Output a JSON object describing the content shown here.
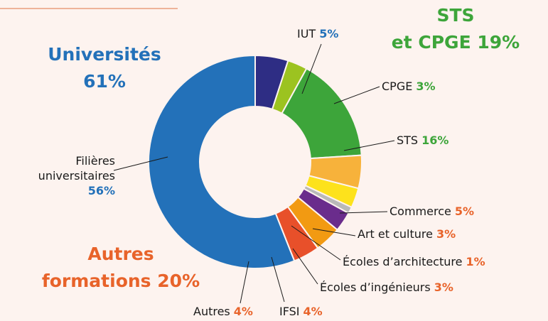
{
  "chart_data": {
    "type": "donut",
    "categories": [
      "IUT",
      "CPGE",
      "STS",
      "Commerce",
      "Art et culture",
      "Écoles d’architecture",
      "Écoles d’ingénieurs",
      "IFSI",
      "Autres",
      "Filières universitaires"
    ],
    "values": [
      5,
      3,
      16,
      5,
      3,
      1,
      3,
      4,
      4,
      56
    ],
    "value_labels": [
      "5%",
      "3%",
      "16%",
      "5%",
      "3%",
      "1%",
      "3%",
      "4%",
      "4%",
      "56%"
    ],
    "colors": [
      "#2e2d84",
      "#9cc320",
      "#3da53a",
      "#f7b23b",
      "#fde21c",
      "#b9b9b9",
      "#6a2c8c",
      "#f29a12",
      "#e8502a",
      "#2371b9"
    ],
    "label_colors": [
      "#2371b9",
      "#3da53a",
      "#3da53a",
      "#e8632a",
      "#e8632a",
      "#e8632a",
      "#e8632a",
      "#e8632a",
      "#e8632a",
      "#2371b9"
    ],
    "groups": [
      {
        "name": "Universités",
        "value": 61,
        "value_label": "61%",
        "color": "#2371b9"
      },
      {
        "name": "STS\net CPGE",
        "value": 19,
        "value_label": "19%",
        "color": "#3da53a"
      },
      {
        "name": "Autres\nformations",
        "value": 20,
        "value_label": "20%",
        "color": "#e8632a"
      }
    ]
  }
}
